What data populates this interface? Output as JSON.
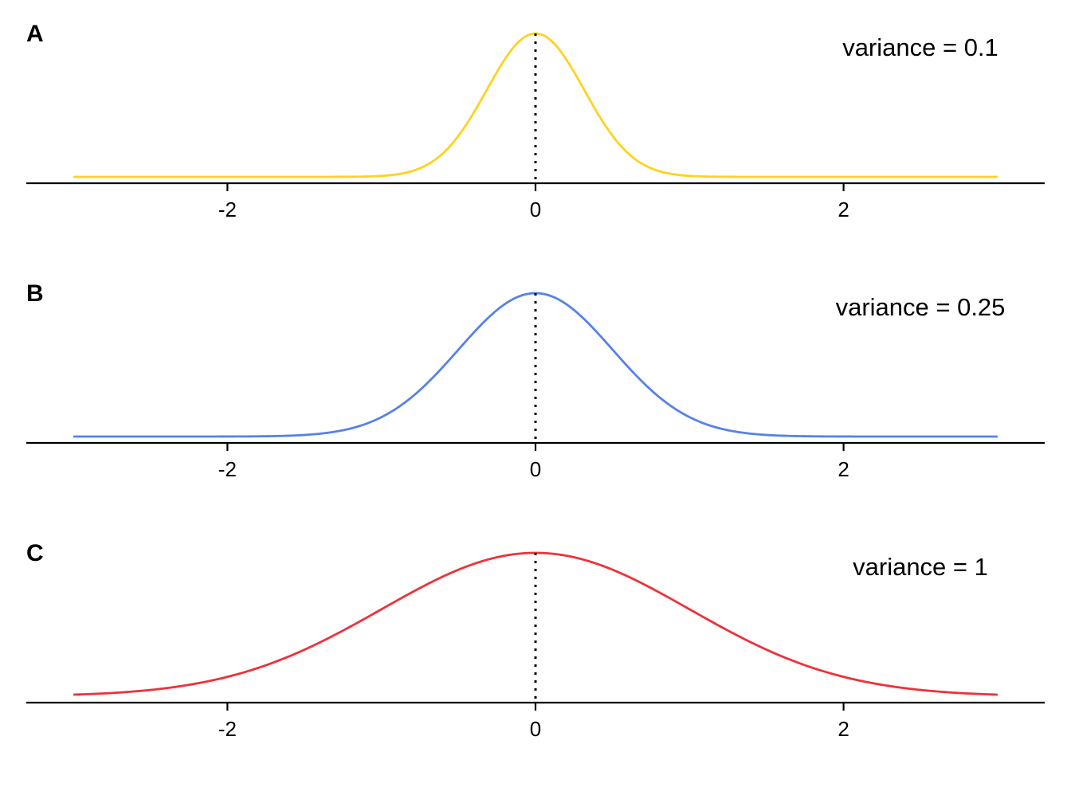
{
  "chart_data": [
    {
      "type": "line",
      "panel_label": "A",
      "annotation": "variance = 0.1",
      "distribution": "normal",
      "mean": 0,
      "variance": 0.1,
      "x_range": [
        -3,
        3
      ],
      "xticks": [
        "-2",
        "0",
        "2"
      ],
      "xtick_values": [
        -2,
        0,
        2
      ],
      "reference_line_x": 0,
      "color": "#FFD21F",
      "grid": false
    },
    {
      "type": "line",
      "panel_label": "B",
      "annotation": "variance = 0.25",
      "distribution": "normal",
      "mean": 0,
      "variance": 0.25,
      "x_range": [
        -3,
        3
      ],
      "xticks": [
        "-2",
        "0",
        "2"
      ],
      "xtick_values": [
        -2,
        0,
        2
      ],
      "reference_line_x": 0,
      "color": "#5682E8",
      "grid": false
    },
    {
      "type": "line",
      "panel_label": "C",
      "annotation": "variance = 1",
      "distribution": "normal",
      "mean": 0,
      "variance": 1,
      "x_range": [
        -3,
        3
      ],
      "xticks": [
        "-2",
        "0",
        "2"
      ],
      "xtick_values": [
        -2,
        0,
        2
      ],
      "reference_line_x": 0,
      "color": "#F0303A",
      "grid": false
    }
  ]
}
